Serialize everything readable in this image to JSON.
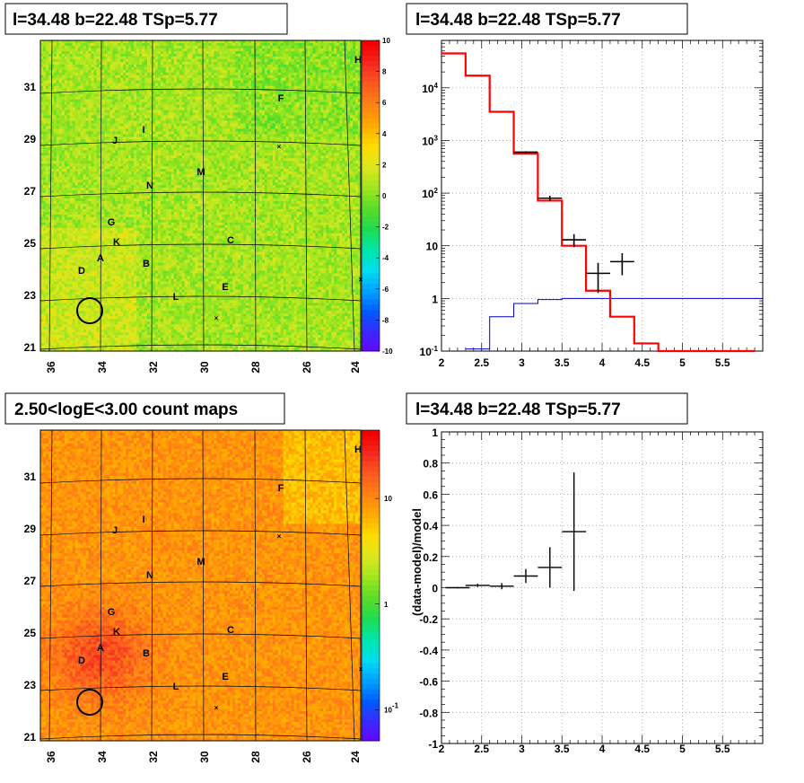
{
  "panels": {
    "map_top_title": "l=34.48 b=22.48 TSp=5.77",
    "spectrum_title": "l=34.48 b=22.48 TSp=5.77",
    "map_bottom_title": "2.50<logE<3.00 count maps",
    "residual_title": "l=34.48 b=22.48 TSp=5.77"
  },
  "chart_data": [
    {
      "type": "heatmap",
      "name": "residual significance map",
      "x_ticks": [
        "36",
        "34",
        "32",
        "30",
        "28",
        "26",
        "24"
      ],
      "y_ticks": [
        "21",
        "23",
        "25",
        "27",
        "29",
        "31"
      ],
      "colorbar_ticks": [
        "10",
        "8",
        "6",
        "4",
        "2",
        "0",
        "-2",
        "-4",
        "-6",
        "-8",
        "-10"
      ],
      "zlim": [
        -10,
        10
      ],
      "source_labels": [
        "H",
        "F",
        "I",
        "J",
        "M",
        "N",
        "G",
        "C",
        "K",
        "A",
        "D",
        "B",
        "E",
        "L"
      ]
    },
    {
      "type": "line",
      "name": "spectrum",
      "log_y": true,
      "xlim": [
        2,
        6
      ],
      "x_ticks": [
        "2",
        "2.5",
        "3",
        "3.5",
        "4",
        "4.5",
        "5",
        "5.5"
      ],
      "y_ticks": [
        "10^-1",
        "1",
        "10",
        "10^2",
        "10^3",
        "10^4"
      ],
      "model_bins": [
        2.0,
        2.3,
        2.6,
        2.9,
        3.2,
        3.5,
        3.8,
        4.1,
        4.4,
        4.7,
        5.0,
        5.3,
        5.6,
        5.9
      ],
      "model_values": [
        45000,
        17000,
        3500,
        560,
        72,
        10,
        1.4,
        0.45,
        0.14,
        0.1,
        0.1,
        0.1,
        0.1
      ],
      "data_points": [
        {
          "x": 3.05,
          "y": 600
        },
        {
          "x": 3.35,
          "y": 80
        },
        {
          "x": 3.65,
          "y": 13
        },
        {
          "x": 3.95,
          "y": 3
        },
        {
          "x": 4.25,
          "y": 5
        }
      ],
      "source_bins": [
        2.3,
        2.6,
        2.9,
        3.2,
        3.5,
        3.8,
        4.1,
        4.4,
        4.7,
        5.0,
        5.3,
        5.6,
        5.9,
        6.0
      ],
      "source_values": [
        0.11,
        0.45,
        0.8,
        0.95,
        1.0,
        1.0,
        1.0,
        1.0,
        1.0,
        1.0,
        1.0,
        1.0,
        1.0
      ],
      "colors": {
        "model": "#ff0000",
        "data": "#000000",
        "source": "#0000cc"
      }
    },
    {
      "type": "heatmap",
      "name": "count map",
      "x_ticks": [
        "36",
        "34",
        "32",
        "30",
        "28",
        "26",
        "24"
      ],
      "y_ticks": [
        "21",
        "23",
        "25",
        "27",
        "29",
        "31"
      ],
      "colorbar_ticks": [
        "10",
        "1",
        "10^-1"
      ],
      "source_labels": [
        "H",
        "F",
        "I",
        "J",
        "M",
        "N",
        "G",
        "C",
        "K",
        "A",
        "D",
        "B",
        "E",
        "L"
      ]
    },
    {
      "type": "scatter",
      "name": "residual",
      "ylabel": "(data-model)/model",
      "xlim": [
        2,
        6
      ],
      "ylim": [
        -1,
        1
      ],
      "x_ticks": [
        "2",
        "2.5",
        "3",
        "3.5",
        "4",
        "4.5",
        "5",
        "5.5"
      ],
      "y_ticks": [
        "-1",
        "-0.8",
        "-0.6",
        "-0.4",
        "-0.2",
        "0",
        "0.2",
        "0.4",
        "0.6",
        "0.8",
        "1"
      ],
      "points": [
        {
          "x": 2.2,
          "y": 0.0,
          "yerr": 0.005
        },
        {
          "x": 2.45,
          "y": 0.015,
          "yerr": 0.01
        },
        {
          "x": 2.75,
          "y": 0.01,
          "yerr": 0.02
        },
        {
          "x": 3.05,
          "y": 0.075,
          "yerr": 0.045
        },
        {
          "x": 3.35,
          "y": 0.13,
          "yerr": 0.13
        },
        {
          "x": 3.65,
          "y": 0.36,
          "yerr": 0.38
        }
      ]
    }
  ]
}
